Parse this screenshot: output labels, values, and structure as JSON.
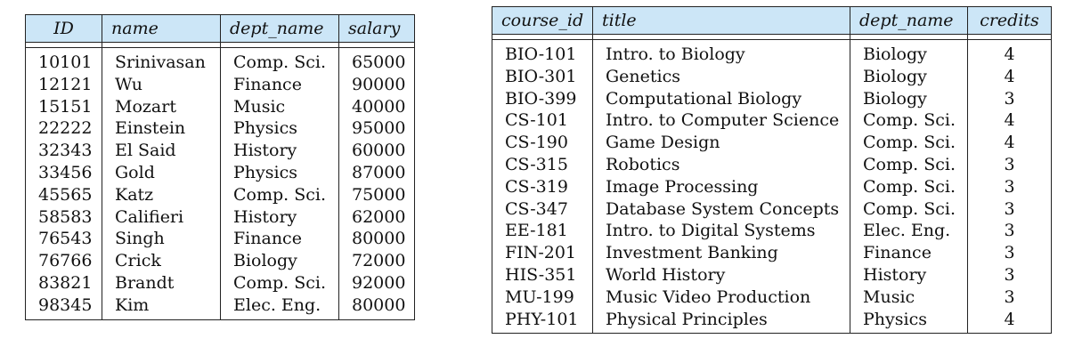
{
  "instructor": {
    "columns": [
      "ID",
      "name",
      "dept_name",
      "salary"
    ],
    "rows": [
      [
        "10101",
        "Srinivasan",
        "Comp. Sci.",
        "65000"
      ],
      [
        "12121",
        "Wu",
        "Finance",
        "90000"
      ],
      [
        "15151",
        "Mozart",
        "Music",
        "40000"
      ],
      [
        "22222",
        "Einstein",
        "Physics",
        "95000"
      ],
      [
        "32343",
        "El Said",
        "History",
        "60000"
      ],
      [
        "33456",
        "Gold",
        "Physics",
        "87000"
      ],
      [
        "45565",
        "Katz",
        "Comp. Sci.",
        "75000"
      ],
      [
        "58583",
        "Califieri",
        "History",
        "62000"
      ],
      [
        "76543",
        "Singh",
        "Finance",
        "80000"
      ],
      [
        "76766",
        "Crick",
        "Biology",
        "72000"
      ],
      [
        "83821",
        "Brandt",
        "Comp. Sci.",
        "92000"
      ],
      [
        "98345",
        "Kim",
        "Elec. Eng.",
        "80000"
      ]
    ]
  },
  "course": {
    "columns": [
      "course_id",
      "title",
      "dept_name",
      "credits"
    ],
    "rows": [
      [
        "BIO-101",
        "Intro. to Biology",
        "Biology",
        "4"
      ],
      [
        "BIO-301",
        "Genetics",
        "Biology",
        "4"
      ],
      [
        "BIO-399",
        "Computational Biology",
        "Biology",
        "3"
      ],
      [
        "CS-101",
        "Intro. to Computer Science",
        "Comp. Sci.",
        "4"
      ],
      [
        "CS-190",
        "Game Design",
        "Comp. Sci.",
        "4"
      ],
      [
        "CS-315",
        "Robotics",
        "Comp. Sci.",
        "3"
      ],
      [
        "CS-319",
        "Image Processing",
        "Comp. Sci.",
        "3"
      ],
      [
        "CS-347",
        "Database System Concepts",
        "Comp. Sci.",
        "3"
      ],
      [
        "EE-181",
        "Intro. to Digital Systems",
        "Elec. Eng.",
        "3"
      ],
      [
        "FIN-201",
        "Investment Banking",
        "Finance",
        "3"
      ],
      [
        "HIS-351",
        "World History",
        "History",
        "3"
      ],
      [
        "MU-199",
        "Music Video Production",
        "Music",
        "3"
      ],
      [
        "PHY-101",
        "Physical Principles",
        "Physics",
        "4"
      ]
    ]
  },
  "colors": {
    "header_bg": "#cce6f7",
    "border": "#222222",
    "text": "#111111"
  }
}
